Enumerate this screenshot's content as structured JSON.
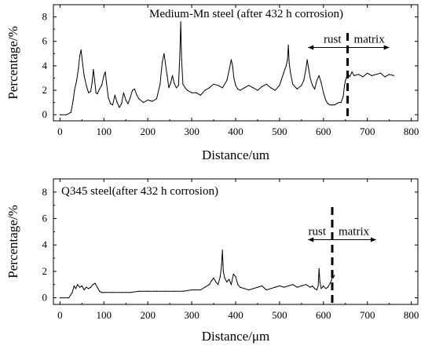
{
  "chart_data": [
    {
      "type": "line",
      "title": "Medium-Mn steel (after 432 h corrosion)",
      "xlabel": "Distance/um",
      "ylabel": "Percentage/%",
      "xlim": [
        -15,
        815
      ],
      "ylim": [
        -0.5,
        9
      ],
      "xticks": [
        0,
        100,
        200,
        300,
        400,
        500,
        600,
        700,
        800
      ],
      "yticks": [
        0,
        2,
        4,
        6,
        8
      ],
      "grid": false,
      "annotations": {
        "rust": "rust",
        "matrix": "matrix",
        "boundary_x": 655,
        "arrow_x": [
          565,
          750
        ],
        "arrow_y": 5.5
      },
      "series": [
        {
          "x": [
            0,
            15,
            25,
            30,
            33,
            38,
            42,
            45,
            48,
            52,
            55,
            60,
            65,
            70,
            73,
            76,
            79,
            82,
            85,
            90,
            95,
            100,
            103,
            106,
            110,
            115,
            120,
            125,
            130,
            135,
            140,
            145,
            150,
            155,
            160,
            165,
            170,
            175,
            180,
            190,
            200,
            210,
            220,
            228,
            233,
            237,
            240,
            244,
            248,
            252,
            256,
            260,
            265,
            270,
            273,
            275,
            277,
            280,
            285,
            290,
            300,
            310,
            320,
            330,
            340,
            350,
            360,
            370,
            380,
            385,
            390,
            393,
            396,
            400,
            405,
            410,
            420,
            430,
            440,
            450,
            460,
            470,
            480,
            490,
            500,
            510,
            515,
            518,
            520,
            522,
            525,
            530,
            540,
            550,
            555,
            560,
            563,
            566,
            570,
            575,
            580,
            585,
            590,
            595,
            600,
            605,
            610,
            615,
            620,
            625,
            630,
            635,
            640,
            645,
            648,
            650,
            652,
            655,
            660,
            665,
            670,
            680,
            690,
            700,
            710,
            720,
            730,
            740,
            750,
            760
          ],
          "y": [
            0,
            0,
            0.2,
            1.2,
            2.0,
            2.8,
            3.8,
            4.8,
            5.3,
            4.0,
            3.2,
            2.4,
            1.8,
            1.9,
            2.6,
            3.7,
            2.8,
            1.8,
            1.7,
            2.1,
            2.4,
            3.2,
            3.5,
            2.6,
            1.4,
            0.9,
            0.8,
            1.6,
            1.0,
            0.6,
            0.9,
            1.8,
            1.2,
            0.9,
            1.4,
            2.0,
            2.1,
            1.6,
            1.3,
            1.0,
            1.2,
            1.1,
            1.3,
            2.5,
            4.3,
            5.0,
            4.2,
            3.2,
            2.2,
            2.6,
            3.2,
            2.6,
            2.2,
            2.4,
            5.0,
            7.6,
            4.5,
            2.5,
            2.2,
            2.0,
            1.8,
            1.8,
            1.6,
            2.0,
            2.2,
            2.5,
            2.4,
            2.2,
            2.8,
            3.6,
            4.5,
            4.0,
            3.0,
            2.4,
            2.1,
            2.0,
            2.2,
            2.4,
            2.2,
            2.0,
            2.3,
            2.5,
            2.2,
            2.0,
            2.4,
            3.5,
            4.0,
            4.5,
            5.7,
            4.2,
            3.4,
            2.5,
            2.1,
            2.4,
            2.8,
            3.7,
            4.5,
            3.8,
            3.0,
            2.4,
            2.1,
            2.8,
            3.2,
            2.6,
            1.8,
            1.2,
            0.9,
            0.8,
            0.8,
            0.8,
            0.9,
            1.0,
            1.0,
            1.5,
            2.4,
            2.8,
            3.0,
            3.4,
            3.1,
            3.5,
            3.2,
            3.3,
            3.1,
            3.4,
            3.2,
            3.3,
            3.4,
            3.1,
            3.3,
            3.2
          ]
        }
      ]
    },
    {
      "type": "line",
      "title": "Q345 steel(after 432 h corrosion)",
      "xlabel": "Distance/μm",
      "ylabel": "Percentage/%",
      "xlim": [
        -15,
        815
      ],
      "ylim": [
        -0.5,
        9
      ],
      "xticks": [
        0,
        100,
        200,
        300,
        400,
        500,
        600,
        700,
        800
      ],
      "yticks": [
        0,
        2,
        4,
        6,
        8
      ],
      "grid": false,
      "annotations": {
        "rust": "rust",
        "matrix": "matrix",
        "boundary_x": 620,
        "arrow_x": [
          565,
          720
        ],
        "arrow_y": 4.4
      },
      "series": [
        {
          "x": [
            0,
            20,
            28,
            32,
            36,
            40,
            45,
            50,
            55,
            60,
            65,
            70,
            75,
            80,
            85,
            90,
            95,
            100,
            120,
            140,
            160,
            180,
            200,
            220,
            240,
            260,
            280,
            300,
            320,
            330,
            340,
            345,
            350,
            355,
            360,
            365,
            368,
            370,
            372,
            375,
            380,
            385,
            390,
            395,
            400,
            405,
            410,
            420,
            430,
            440,
            450,
            460,
            470,
            480,
            490,
            500,
            510,
            520,
            530,
            540,
            550,
            560,
            570,
            575,
            580,
            585,
            588,
            590,
            592,
            595,
            600,
            605,
            610,
            615,
            618,
            620,
            622,
            625
          ],
          "y": [
            0,
            0,
            0.4,
            0.9,
            0.7,
            1.0,
            0.8,
            0.9,
            0.6,
            0.8,
            0.7,
            0.8,
            1.0,
            1.1,
            0.8,
            0.5,
            0.4,
            0.4,
            0.4,
            0.4,
            0.4,
            0.5,
            0.5,
            0.5,
            0.5,
            0.5,
            0.5,
            0.6,
            0.6,
            0.8,
            1.0,
            1.3,
            1.5,
            1.2,
            1.0,
            1.6,
            2.5,
            3.6,
            2.0,
            1.5,
            1.2,
            1.4,
            1.0,
            1.8,
            1.6,
            1.0,
            0.8,
            0.7,
            0.6,
            0.7,
            0.8,
            0.9,
            0.6,
            0.7,
            0.8,
            0.9,
            0.8,
            0.9,
            1.0,
            0.8,
            0.9,
            1.0,
            0.8,
            0.9,
            0.7,
            0.6,
            0.9,
            2.2,
            1.2,
            0.7,
            0.9,
            0.7,
            0.8,
            1.1,
            1.3,
            1.6,
            1.5,
            1.7
          ]
        }
      ]
    }
  ]
}
